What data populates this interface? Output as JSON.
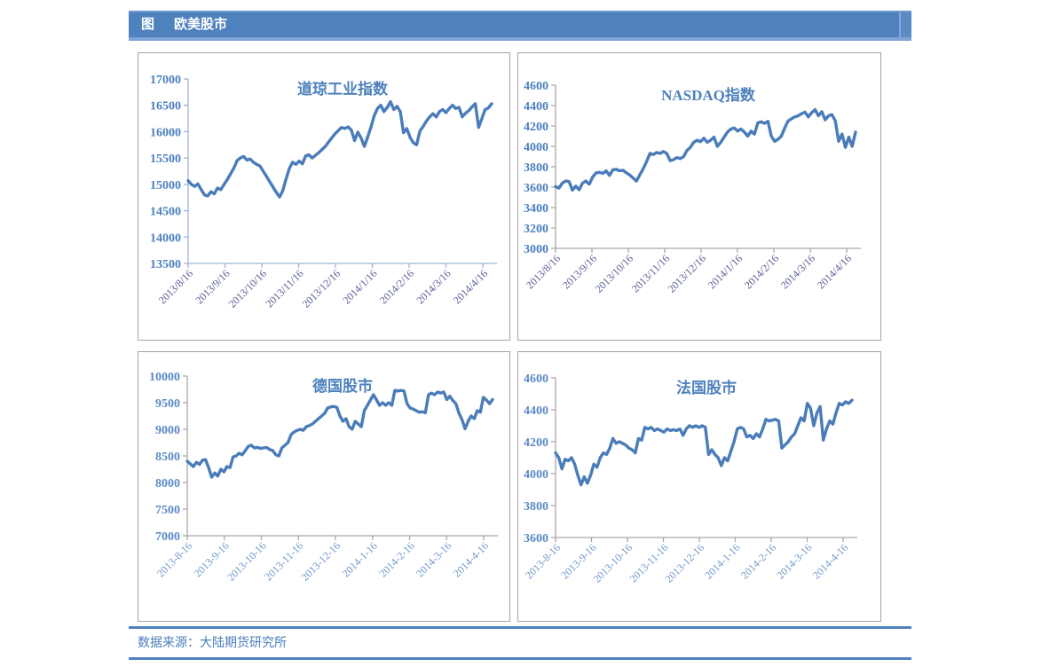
{
  "header": {
    "tag": "图",
    "title": "欧美股市"
  },
  "footer": {
    "source": "数据来源：大陆期货研究所"
  },
  "colors": {
    "header_bg": "#4e81bd",
    "header_text": "#ffffff",
    "rule": "#4e81bd",
    "footer_text": "#4a7ebb",
    "panel_border": "#a3a3a3",
    "series_line": "#4a7cba"
  },
  "chart_data": [
    {
      "type": "line",
      "title": "道琼工业指数",
      "ylim": [
        13500,
        17000
      ],
      "yticks": [
        17000,
        16500,
        16000,
        15500,
        15000,
        14500,
        14000,
        13500
      ],
      "xticklabels": [
        "2013/8/16",
        "2013/9/16",
        "2013/10/16",
        "2013/11/16",
        "2013/12/16",
        "2014/1/16",
        "2014/2/16",
        "2014/3/16",
        "2014/4/16"
      ],
      "legend": "none",
      "grid": false,
      "colors": {
        "line": "#4a7cba",
        "axis": "#9db3d8",
        "ytick": "#4c80c0",
        "xtick": "#585d99",
        "title": "#4e81bd"
      },
      "values": [
        15070,
        15000,
        14960,
        15010,
        14900,
        14800,
        14780,
        14860,
        14820,
        14930,
        14900,
        15000,
        15090,
        15200,
        15310,
        15450,
        15500,
        15530,
        15460,
        15480,
        15420,
        15380,
        15350,
        15250,
        15150,
        15050,
        14950,
        14850,
        14760,
        14880,
        15100,
        15300,
        15420,
        15380,
        15440,
        15390,
        15540,
        15560,
        15500,
        15550,
        15600,
        15660,
        15720,
        15800,
        15880,
        15960,
        16020,
        16080,
        16060,
        16090,
        16030,
        15830,
        15990,
        15880,
        15720,
        15900,
        16080,
        16300,
        16440,
        16500,
        16380,
        16460,
        16570,
        16420,
        16480,
        16380,
        15980,
        16060,
        15890,
        15790,
        15750,
        16010,
        16100,
        16200,
        16280,
        16340,
        16280,
        16380,
        16420,
        16360,
        16440,
        16500,
        16440,
        16460,
        16280,
        16350,
        16400,
        16470,
        16530,
        16080,
        16250,
        16420,
        16450,
        16530
      ]
    },
    {
      "type": "line",
      "title": "NASDAQ指数",
      "ylim": [
        3000,
        4600
      ],
      "yticks": [
        4600,
        4400,
        4200,
        4000,
        3800,
        3600,
        3400,
        3200,
        3000
      ],
      "xticklabels": [
        "2013/8/16",
        "2013/9/16",
        "2013/10/16",
        "2013/11/16",
        "2013/12/16",
        "2014/1/16",
        "2014/2/16",
        "2014/3/16",
        "2014/4/16"
      ],
      "legend": "none",
      "grid": false,
      "colors": {
        "line": "#4a7cba",
        "axis": "#a8a8a8",
        "ytick": "#4c80c0",
        "xtick": "#585d99",
        "title": "#4e81bd"
      },
      "values": [
        3605,
        3590,
        3640,
        3660,
        3655,
        3570,
        3610,
        3575,
        3640,
        3660,
        3630,
        3700,
        3740,
        3745,
        3735,
        3760,
        3715,
        3770,
        3775,
        3760,
        3765,
        3740,
        3720,
        3690,
        3660,
        3720,
        3780,
        3850,
        3930,
        3920,
        3940,
        3930,
        3950,
        3930,
        3860,
        3870,
        3890,
        3880,
        3900,
        3960,
        3990,
        4040,
        4060,
        4045,
        4080,
        4040,
        4060,
        4090,
        4000,
        4040,
        4090,
        4140,
        4170,
        4180,
        4150,
        4170,
        4140,
        4100,
        4150,
        4120,
        4230,
        4240,
        4225,
        4245,
        4100,
        4050,
        4070,
        4100,
        4180,
        4250,
        4270,
        4290,
        4300,
        4320,
        4335,
        4290,
        4330,
        4360,
        4300,
        4340,
        4260,
        4300,
        4310,
        4250,
        4050,
        4120,
        3990,
        4090,
        4000,
        4140
      ]
    },
    {
      "type": "line",
      "title": "德国股市",
      "ylim": [
        7000,
        10000
      ],
      "yticks": [
        10000,
        9500,
        9000,
        8500,
        8000,
        7500,
        7000
      ],
      "xticklabels": [
        "2013-8-16",
        "2013-9-16",
        "2013-10-16",
        "2013-11-16",
        "2013-12-16",
        "2014-1-16",
        "2014-2-16",
        "2014-3-16",
        "2014-4-16"
      ],
      "legend": "none",
      "grid": false,
      "colors": {
        "line": "#4a7cba",
        "axis": "#a8a8a8",
        "ytick": "#5b8ac5",
        "xtick": "#6e97cd",
        "title": "#4e81bd"
      },
      "values": [
        8400,
        8350,
        8300,
        8380,
        8340,
        8420,
        8430,
        8280,
        8100,
        8180,
        8120,
        8250,
        8200,
        8300,
        8280,
        8480,
        8500,
        8550,
        8520,
        8600,
        8680,
        8700,
        8650,
        8660,
        8640,
        8650,
        8660,
        8620,
        8600,
        8520,
        8500,
        8650,
        8700,
        8750,
        8900,
        8950,
        8980,
        9000,
        8980,
        9050,
        9070,
        9100,
        9150,
        9200,
        9250,
        9300,
        9400,
        9420,
        9430,
        9410,
        9250,
        9150,
        9200,
        9050,
        9000,
        9150,
        9100,
        9050,
        9350,
        9450,
        9550,
        9650,
        9550,
        9450,
        9500,
        9450,
        9500,
        9450,
        9730,
        9720,
        9730,
        9720,
        9480,
        9400,
        9380,
        9350,
        9320,
        9330,
        9310,
        9650,
        9680,
        9650,
        9700,
        9680,
        9700,
        9560,
        9620,
        9540,
        9480,
        9300,
        9180,
        9010,
        9150,
        9250,
        9200,
        9350,
        9320,
        9600,
        9550,
        9480,
        9560
      ]
    },
    {
      "type": "line",
      "title": "法国股市",
      "ylim": [
        3600,
        4600
      ],
      "yticks": [
        4600,
        4400,
        4200,
        4000,
        3800,
        3600
      ],
      "xticklabels": [
        "2013-8-16",
        "2013-9-16",
        "2013-10-16",
        "2013-11-16",
        "2013-12-16",
        "2014-1-16",
        "2014-2-16",
        "2014-3-16",
        "2014-4-16"
      ],
      "legend": "none",
      "grid": false,
      "colors": {
        "line": "#4a7cba",
        "axis": "#a8a8a8",
        "ytick": "#5b8ac5",
        "xtick": "#6e97cd",
        "title": "#4e81bd"
      },
      "values": [
        4130,
        4100,
        4030,
        4090,
        4080,
        4100,
        4060,
        3990,
        3930,
        3980,
        3940,
        3990,
        4060,
        4040,
        4100,
        4130,
        4120,
        4160,
        4220,
        4190,
        4200,
        4190,
        4180,
        4160,
        4150,
        4130,
        4220,
        4210,
        4290,
        4280,
        4290,
        4270,
        4280,
        4270,
        4260,
        4280,
        4270,
        4275,
        4270,
        4280,
        4240,
        4280,
        4300,
        4290,
        4300,
        4290,
        4300,
        4290,
        4120,
        4150,
        4120,
        4100,
        4050,
        4100,
        4080,
        4140,
        4200,
        4280,
        4290,
        4280,
        4230,
        4240,
        4220,
        4250,
        4230,
        4280,
        4340,
        4330,
        4335,
        4340,
        4330,
        4160,
        4180,
        4200,
        4230,
        4250,
        4300,
        4350,
        4330,
        4440,
        4410,
        4300,
        4380,
        4420,
        4210,
        4280,
        4330,
        4310,
        4380,
        4440,
        4430,
        4450,
        4440,
        4460
      ]
    }
  ]
}
